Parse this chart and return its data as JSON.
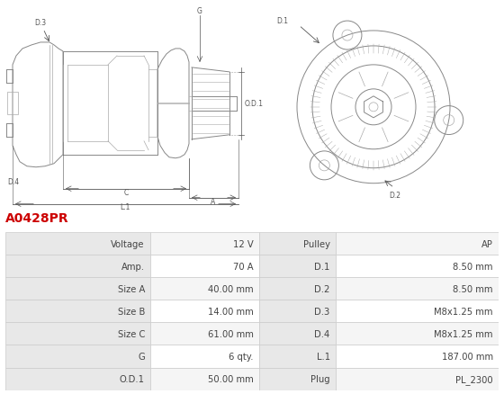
{
  "title": "A0428PR",
  "title_color": "#cc0000",
  "table_rows": [
    [
      "Voltage",
      "12 V",
      "Pulley",
      "AP"
    ],
    [
      "Amp.",
      "70 A",
      "D.1",
      "8.50 mm"
    ],
    [
      "Size A",
      "40.00 mm",
      "D.2",
      "8.50 mm"
    ],
    [
      "Size B",
      "14.00 mm",
      "D.3",
      "M8x1.25 mm"
    ],
    [
      "Size C",
      "61.00 mm",
      "D.4",
      "M8x1.25 mm"
    ],
    [
      "G",
      "6 qty.",
      "L.1",
      "187.00 mm"
    ],
    [
      "O.D.1",
      "50.00 mm",
      "Plug",
      "PL_2300"
    ]
  ],
  "header_bg": "#e8e8e8",
  "row_bg_odd": "#f5f5f5",
  "row_bg_even": "#ffffff",
  "border_color": "#cccccc",
  "text_color": "#444444",
  "fig_width": 5.6,
  "fig_height": 4.39,
  "dpi": 100
}
